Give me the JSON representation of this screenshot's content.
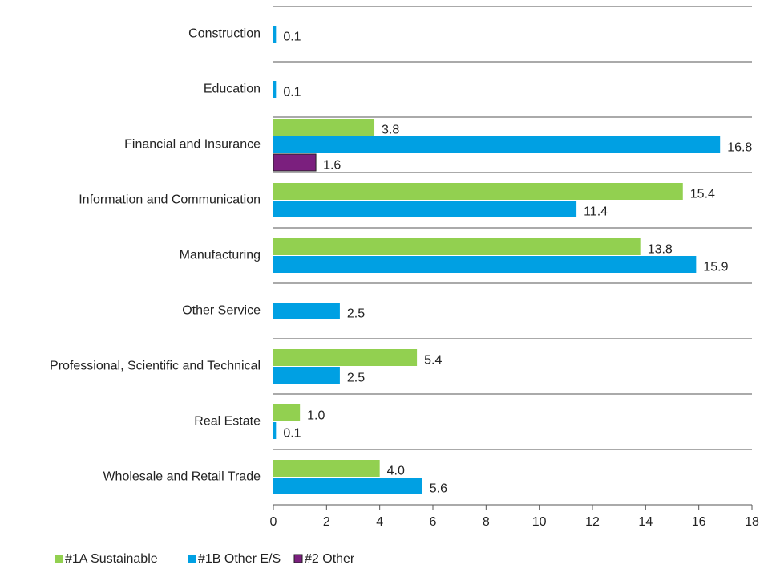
{
  "chart_data": {
    "type": "bar",
    "orientation": "horizontal",
    "categories": [
      "Construction",
      "Education",
      "Financial and Insurance",
      "Information and Communication",
      "Manufacturing",
      "Other Service",
      "Professional, Scientific and Technical",
      "Real Estate",
      "Wholesale and Retail Trade"
    ],
    "series": [
      {
        "name": "#1A Sustainable",
        "color": "#92d050",
        "values": [
          null,
          null,
          3.8,
          15.4,
          13.8,
          null,
          5.4,
          1.0,
          4.0
        ],
        "value_labels": [
          null,
          null,
          "3.8",
          "15.4",
          "13.8",
          null,
          "5.4",
          "1.0",
          "4.0"
        ]
      },
      {
        "name": "#1B Other E/S",
        "color": "#00a0e3",
        "values": [
          0.1,
          0.1,
          16.8,
          11.4,
          15.9,
          2.5,
          2.5,
          0.1,
          5.6
        ],
        "value_labels": [
          "0.1",
          "0.1",
          "16.8",
          "11.4",
          "15.9",
          "2.5",
          "2.5",
          "0.1",
          "5.6"
        ]
      },
      {
        "name": "#2 Other",
        "color": "#7b1f7e",
        "values": [
          null,
          null,
          1.6,
          null,
          null,
          null,
          null,
          null,
          null
        ],
        "value_labels": [
          null,
          null,
          "1.6",
          null,
          null,
          null,
          null,
          null,
          null
        ]
      }
    ],
    "xlim": [
      0,
      18
    ],
    "xticks": [
      0,
      2,
      4,
      6,
      8,
      10,
      12,
      14,
      16,
      18
    ],
    "legend": "bottom-left"
  }
}
